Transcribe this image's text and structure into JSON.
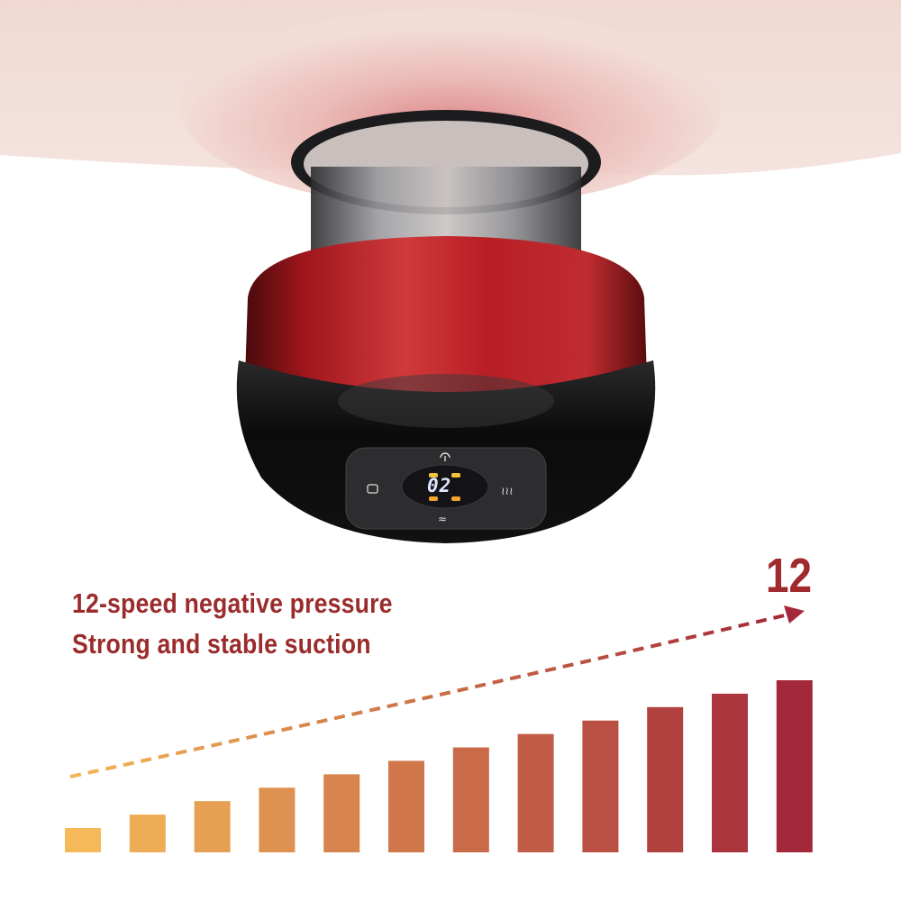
{
  "headline": {
    "line1": "12-speed negative pressure",
    "line2": "Strong and stable suction"
  },
  "max_level_label": "12",
  "device": {
    "display_value": "02",
    "body_color": "#b01c22",
    "icons": [
      "power-icon",
      "cup-mode-icon",
      "heat-icon",
      "wave-icon"
    ]
  },
  "chart_data": {
    "type": "bar",
    "categories": [
      "1",
      "2",
      "3",
      "4",
      "5",
      "6",
      "7",
      "8",
      "9",
      "10",
      "11",
      "12"
    ],
    "values": [
      1,
      2,
      3,
      4,
      5,
      6,
      7,
      8,
      9,
      10,
      11,
      12
    ],
    "color_start": "#f6b95a",
    "color_end": "#a3283a",
    "trend": "dashed arrow rising toward 12"
  }
}
